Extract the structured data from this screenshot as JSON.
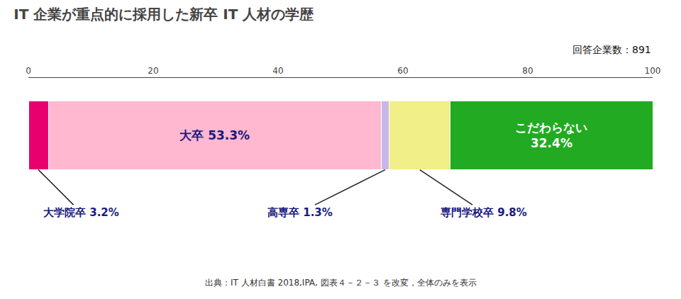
{
  "chart_data": {
    "type": "bar",
    "orientation": "horizontal",
    "stacked": true,
    "title": "IT 企業が重点的に採用した新卒 IT 人材の学歴",
    "subtitle": "回答企業数：891",
    "annotations": [
      "出典：IT 人材白書 2018,IPA, 図表４－２－３ を改変，全体のみを表示"
    ],
    "categories": [
      null
    ],
    "series": [
      {
        "color": "#e8006e",
        "values": [
          3.2
        ],
        "value_labels": [
          "大学院卒 3.2%"
        ]
      },
      {
        "color": "#ffb8d0",
        "values": [
          53.3
        ],
        "value_labels": [
          "大卒 53.3%"
        ]
      },
      {
        "color": "#c8b8e8",
        "values": [
          1.3
        ],
        "value_labels": [
          "高専卒 1.3%"
        ]
      },
      {
        "color": "#f0ef88",
        "values": [
          9.8
        ],
        "value_labels": [
          "専門学校卒 9.8%"
        ]
      },
      {
        "color": "#22aa22",
        "values": [
          32.4
        ],
        "value_labels": [
          "こだわらない\n32.4%"
        ]
      }
    ],
    "xlim": [
      0,
      100
    ],
    "xticks": [
      0,
      20,
      40,
      60,
      80,
      100
    ],
    "grid": false,
    "data_labels": true,
    "tick_labels": "x"
  }
}
